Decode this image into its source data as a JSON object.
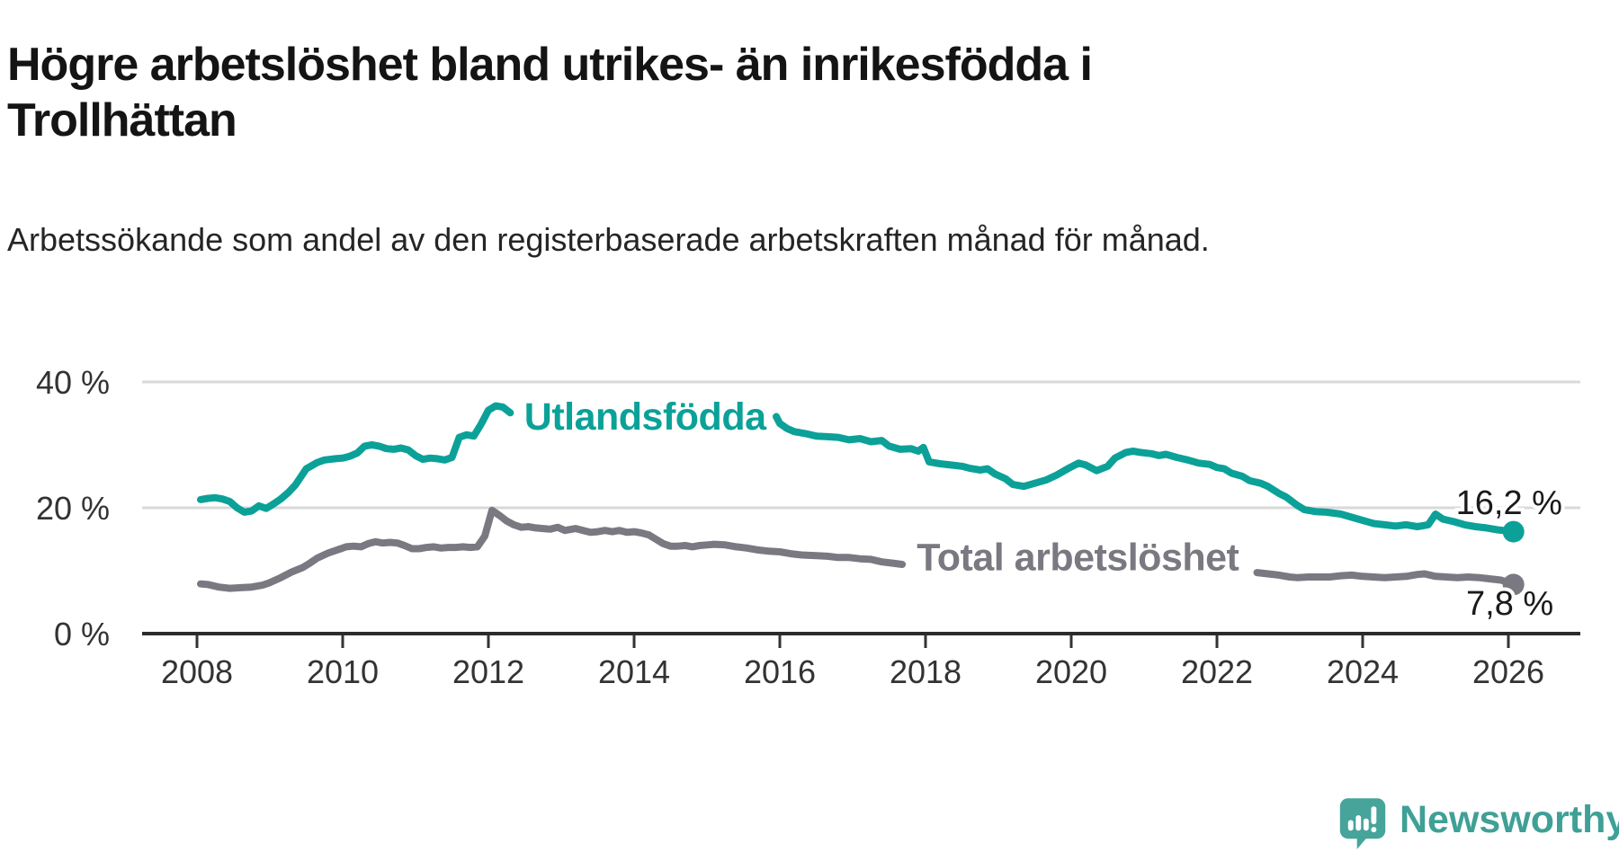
{
  "title": "Högre arbetslöshet bland utrikes- än inrikesfödda i Trollhättan",
  "subtitle": "Arbetssökande som andel av den registerbaserade arbetskraften månad för månad.",
  "branding": {
    "logo_text": "Newsworthy",
    "logo_icon": "newsworthy-speech-bubble-bar-chart-icon",
    "icon_color": "#46a49b",
    "text_color": "#3fa096"
  },
  "chart_data": {
    "type": "line",
    "title": "Högre arbetslöshet bland utrikes- än inrikesfödda i Trollhättan",
    "xlabel": "",
    "ylabel": "",
    "xlim": [
      2007.25,
      2027.0
    ],
    "ylim": [
      0,
      42
    ],
    "grid": "horizontal",
    "grid_color": "#d9d9d9",
    "axis_color": "#2b2b2b",
    "tick_color": "#333333",
    "value_label_color": "#1a1a1a",
    "x_ticks": [
      {
        "value": 2008,
        "label": "2008"
      },
      {
        "value": 2010,
        "label": "2010"
      },
      {
        "value": 2012,
        "label": "2012"
      },
      {
        "value": 2014,
        "label": "2014"
      },
      {
        "value": 2016,
        "label": "2016"
      },
      {
        "value": 2018,
        "label": "2018"
      },
      {
        "value": 2020,
        "label": "2020"
      },
      {
        "value": 2022,
        "label": "2022"
      },
      {
        "value": 2024,
        "label": "2024"
      },
      {
        "value": 2026,
        "label": "2026"
      }
    ],
    "y_ticks": [
      {
        "value": 40,
        "label": "40 %"
      },
      {
        "value": 20,
        "label": "20 %"
      },
      {
        "value": 0,
        "label": "0 %"
      }
    ],
    "series": [
      {
        "id": "utlandsfodda",
        "name": "Utlandsfödda",
        "color": "#0ba198",
        "inline_label": {
          "text": "Utlandsfödda",
          "x": 2014.15,
          "y": 32.4
        },
        "end_label": {
          "text": "16,2 %",
          "x": 2026.74,
          "y": 19.0,
          "anchor": "end"
        },
        "last_point": {
          "x": 2026.07,
          "y": 16.2
        },
        "segments": [
          [
            [
              2008.05,
              21.3
            ],
            [
              2008.15,
              21.5
            ],
            [
              2008.25,
              21.6
            ],
            [
              2008.35,
              21.4
            ],
            [
              2008.45,
              21.0
            ],
            [
              2008.55,
              20.0
            ],
            [
              2008.65,
              19.3
            ],
            [
              2008.75,
              19.5
            ],
            [
              2008.85,
              20.3
            ],
            [
              2008.95,
              19.9
            ],
            [
              2009.05,
              20.6
            ],
            [
              2009.15,
              21.4
            ],
            [
              2009.25,
              22.4
            ],
            [
              2009.35,
              23.6
            ],
            [
              2009.5,
              26.2
            ],
            [
              2009.65,
              27.2
            ],
            [
              2009.75,
              27.6
            ],
            [
              2009.9,
              27.8
            ],
            [
              2010.0,
              27.9
            ],
            [
              2010.1,
              28.2
            ],
            [
              2010.2,
              28.7
            ],
            [
              2010.3,
              29.8
            ],
            [
              2010.4,
              30.0
            ],
            [
              2010.5,
              29.8
            ],
            [
              2010.6,
              29.4
            ],
            [
              2010.7,
              29.3
            ],
            [
              2010.8,
              29.5
            ],
            [
              2010.9,
              29.2
            ],
            [
              2011.0,
              28.3
            ],
            [
              2011.1,
              27.7
            ],
            [
              2011.2,
              27.9
            ],
            [
              2011.3,
              27.8
            ],
            [
              2011.4,
              27.6
            ],
            [
              2011.5,
              28.0
            ],
            [
              2011.6,
              31.2
            ],
            [
              2011.7,
              31.6
            ],
            [
              2011.8,
              31.4
            ],
            [
              2011.9,
              33.3
            ],
            [
              2012.0,
              35.5
            ],
            [
              2012.1,
              36.2
            ],
            [
              2012.2,
              36.0
            ],
            [
              2012.3,
              35.1
            ]
          ],
          [
            [
              2015.95,
              34.5
            ],
            [
              2016.0,
              33.4
            ],
            [
              2016.1,
              32.6
            ],
            [
              2016.2,
              32.1
            ],
            [
              2016.35,
              31.8
            ],
            [
              2016.5,
              31.4
            ],
            [
              2016.65,
              31.3
            ],
            [
              2016.8,
              31.2
            ],
            [
              2016.95,
              30.8
            ],
            [
              2017.1,
              31.0
            ],
            [
              2017.25,
              30.5
            ],
            [
              2017.4,
              30.7
            ],
            [
              2017.5,
              29.8
            ],
            [
              2017.65,
              29.3
            ],
            [
              2017.8,
              29.4
            ],
            [
              2017.9,
              29.0
            ],
            [
              2017.97,
              29.6
            ],
            [
              2018.05,
              27.3
            ],
            [
              2018.2,
              27.0
            ],
            [
              2018.35,
              26.8
            ],
            [
              2018.5,
              26.6
            ],
            [
              2018.6,
              26.3
            ],
            [
              2018.75,
              26.0
            ],
            [
              2018.85,
              26.2
            ],
            [
              2018.95,
              25.4
            ],
            [
              2019.1,
              24.6
            ],
            [
              2019.2,
              23.7
            ],
            [
              2019.35,
              23.4
            ],
            [
              2019.5,
              23.9
            ],
            [
              2019.65,
              24.4
            ],
            [
              2019.8,
              25.2
            ],
            [
              2019.95,
              26.2
            ],
            [
              2020.1,
              27.1
            ],
            [
              2020.2,
              26.8
            ],
            [
              2020.35,
              25.9
            ],
            [
              2020.5,
              26.6
            ],
            [
              2020.6,
              27.9
            ],
            [
              2020.75,
              28.8
            ],
            [
              2020.85,
              29.0
            ],
            [
              2020.95,
              28.8
            ],
            [
              2021.1,
              28.6
            ],
            [
              2021.2,
              28.3
            ],
            [
              2021.3,
              28.5
            ],
            [
              2021.45,
              28.0
            ],
            [
              2021.6,
              27.6
            ],
            [
              2021.75,
              27.1
            ],
            [
              2021.9,
              26.9
            ],
            [
              2022.0,
              26.4
            ],
            [
              2022.1,
              26.2
            ],
            [
              2022.2,
              25.5
            ],
            [
              2022.35,
              25.0
            ],
            [
              2022.45,
              24.3
            ],
            [
              2022.6,
              23.9
            ],
            [
              2022.7,
              23.4
            ],
            [
              2022.85,
              22.3
            ],
            [
              2022.95,
              21.7
            ],
            [
              2023.1,
              20.4
            ],
            [
              2023.2,
              19.7
            ],
            [
              2023.35,
              19.4
            ],
            [
              2023.5,
              19.3
            ],
            [
              2023.7,
              19.0
            ],
            [
              2023.85,
              18.5
            ],
            [
              2024.0,
              18.0
            ],
            [
              2024.15,
              17.5
            ],
            [
              2024.3,
              17.3
            ],
            [
              2024.45,
              17.1
            ],
            [
              2024.6,
              17.3
            ],
            [
              2024.75,
              17.0
            ],
            [
              2024.9,
              17.3
            ],
            [
              2025.0,
              19.0
            ],
            [
              2025.1,
              18.2
            ],
            [
              2025.25,
              17.8
            ],
            [
              2025.4,
              17.3
            ],
            [
              2025.55,
              17.0
            ],
            [
              2025.7,
              16.8
            ],
            [
              2025.85,
              16.5
            ],
            [
              2026.0,
              16.3
            ],
            [
              2026.07,
              16.2
            ]
          ]
        ]
      },
      {
        "id": "total-arbetsloshet",
        "name": "Total arbetslöshet",
        "color": "#7a7880",
        "inline_label": {
          "text": "Total arbetslöshet",
          "x": 2020.09,
          "y": 10.1
        },
        "end_label": {
          "text": "7,8 %",
          "x": 2026.62,
          "y": 3.0,
          "anchor": "end"
        },
        "last_point": {
          "x": 2026.07,
          "y": 7.8
        },
        "segments": [
          [
            [
              2008.05,
              7.9
            ],
            [
              2008.15,
              7.8
            ],
            [
              2008.3,
              7.4
            ],
            [
              2008.45,
              7.2
            ],
            [
              2008.6,
              7.3
            ],
            [
              2008.75,
              7.4
            ],
            [
              2008.9,
              7.7
            ],
            [
              2009.0,
              8.1
            ],
            [
              2009.15,
              8.9
            ],
            [
              2009.3,
              9.8
            ],
            [
              2009.45,
              10.5
            ],
            [
              2009.55,
              11.2
            ],
            [
              2009.65,
              12.0
            ],
            [
              2009.8,
              12.8
            ],
            [
              2009.95,
              13.4
            ],
            [
              2010.05,
              13.8
            ],
            [
              2010.15,
              13.9
            ],
            [
              2010.25,
              13.8
            ],
            [
              2010.35,
              14.3
            ],
            [
              2010.45,
              14.6
            ],
            [
              2010.55,
              14.4
            ],
            [
              2010.65,
              14.5
            ],
            [
              2010.75,
              14.4
            ],
            [
              2010.85,
              14.0
            ],
            [
              2010.95,
              13.5
            ],
            [
              2011.05,
              13.5
            ],
            [
              2011.15,
              13.7
            ],
            [
              2011.25,
              13.8
            ],
            [
              2011.35,
              13.6
            ],
            [
              2011.45,
              13.7
            ],
            [
              2011.55,
              13.7
            ],
            [
              2011.65,
              13.8
            ],
            [
              2011.75,
              13.7
            ],
            [
              2011.85,
              13.8
            ],
            [
              2011.95,
              15.5
            ],
            [
              2012.05,
              19.6
            ],
            [
              2012.15,
              18.8
            ],
            [
              2012.25,
              17.9
            ],
            [
              2012.35,
              17.3
            ],
            [
              2012.45,
              16.9
            ],
            [
              2012.55,
              17.0
            ],
            [
              2012.65,
              16.8
            ],
            [
              2012.75,
              16.7
            ],
            [
              2012.85,
              16.6
            ],
            [
              2012.95,
              16.9
            ],
            [
              2013.05,
              16.4
            ],
            [
              2013.2,
              16.7
            ],
            [
              2013.3,
              16.4
            ],
            [
              2013.4,
              16.1
            ],
            [
              2013.5,
              16.2
            ],
            [
              2013.6,
              16.4
            ],
            [
              2013.7,
              16.2
            ],
            [
              2013.8,
              16.4
            ],
            [
              2013.9,
              16.1
            ],
            [
              2014.0,
              16.2
            ],
            [
              2014.1,
              16.0
            ],
            [
              2014.2,
              15.7
            ],
            [
              2014.3,
              15.0
            ],
            [
              2014.4,
              14.3
            ],
            [
              2014.5,
              13.9
            ],
            [
              2014.6,
              13.9
            ],
            [
              2014.7,
              14.0
            ],
            [
              2014.8,
              13.8
            ],
            [
              2014.9,
              14.0
            ],
            [
              2015.0,
              14.1
            ],
            [
              2015.1,
              14.2
            ],
            [
              2015.25,
              14.1
            ],
            [
              2015.4,
              13.8
            ],
            [
              2015.55,
              13.6
            ],
            [
              2015.7,
              13.3
            ],
            [
              2015.85,
              13.1
            ],
            [
              2016.0,
              13.0
            ],
            [
              2016.15,
              12.7
            ],
            [
              2016.3,
              12.5
            ],
            [
              2016.5,
              12.4
            ],
            [
              2016.65,
              12.3
            ],
            [
              2016.8,
              12.1
            ],
            [
              2016.95,
              12.1
            ],
            [
              2017.1,
              11.9
            ],
            [
              2017.25,
              11.8
            ],
            [
              2017.4,
              11.4
            ],
            [
              2017.55,
              11.2
            ],
            [
              2017.68,
              11.0
            ]
          ],
          [
            [
              2022.55,
              9.7
            ],
            [
              2022.7,
              9.5
            ],
            [
              2022.85,
              9.3
            ],
            [
              2023.0,
              9.0
            ],
            [
              2023.1,
              8.9
            ],
            [
              2023.25,
              9.0
            ],
            [
              2023.4,
              9.0
            ],
            [
              2023.55,
              9.0
            ],
            [
              2023.7,
              9.2
            ],
            [
              2023.85,
              9.3
            ],
            [
              2024.0,
              9.1
            ],
            [
              2024.15,
              9.0
            ],
            [
              2024.3,
              8.9
            ],
            [
              2024.45,
              9.0
            ],
            [
              2024.6,
              9.1
            ],
            [
              2024.75,
              9.4
            ],
            [
              2024.85,
              9.5
            ],
            [
              2025.0,
              9.1
            ],
            [
              2025.15,
              9.0
            ],
            [
              2025.3,
              8.9
            ],
            [
              2025.45,
              9.0
            ],
            [
              2025.6,
              8.9
            ],
            [
              2025.75,
              8.7
            ],
            [
              2025.9,
              8.5
            ],
            [
              2026.0,
              8.1
            ],
            [
              2026.07,
              7.8
            ]
          ]
        ]
      }
    ]
  }
}
